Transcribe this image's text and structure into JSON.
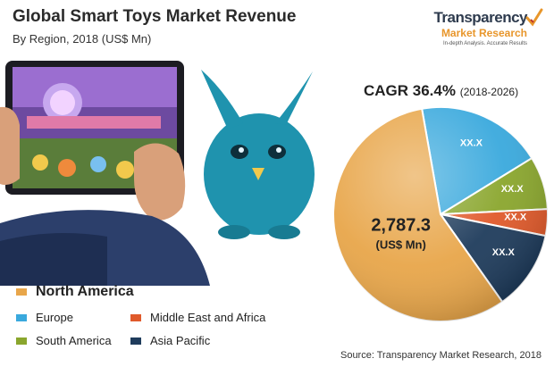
{
  "header": {
    "title": "Global Smart Toys Market Revenue",
    "subtitle": "By Region, 2018 (US$ Mn)"
  },
  "logo": {
    "name": "Transparency",
    "sub": "Market Research",
    "tagline": "In-depth Analysis. Accurate Results"
  },
  "cagr": {
    "label": "CAGR 36.4%",
    "years": "(2018-2026)"
  },
  "source": "Source: Transparency Market Research, 2018",
  "chart_data": {
    "type": "pie",
    "title": "Global Smart Toys Market Revenue",
    "subtitle": "By Region, 2018 (US$ Mn)",
    "legend_position": "bottom-left",
    "slices": [
      {
        "name": "North America",
        "share": 0.57,
        "label": "2,787.3",
        "unit": "(US$ Mn)",
        "color": "#e8a64a"
      },
      {
        "name": "Europe",
        "share": 0.19,
        "label": "XX.X",
        "unit": "",
        "color": "#3aa9dd"
      },
      {
        "name": "South America",
        "share": 0.08,
        "label": "XX.X",
        "unit": "",
        "color": "#8aa62d"
      },
      {
        "name": "Middle East and Africa",
        "share": 0.04,
        "label": "XX.X",
        "unit": "",
        "color": "#e05a2b"
      },
      {
        "name": "Asia Pacific",
        "share": 0.12,
        "label": "XX.X",
        "unit": "",
        "color": "#1f3c5c"
      }
    ]
  },
  "legend": [
    {
      "label": "North America",
      "color": "#e8a64a"
    },
    {
      "label": "Europe",
      "color": "#3aa9dd"
    },
    {
      "label": "Middle East and Africa",
      "color": "#e05a2b"
    },
    {
      "label": "South America",
      "color": "#8aa62d"
    },
    {
      "label": "Asia Pacific",
      "color": "#1f3c5c"
    }
  ]
}
